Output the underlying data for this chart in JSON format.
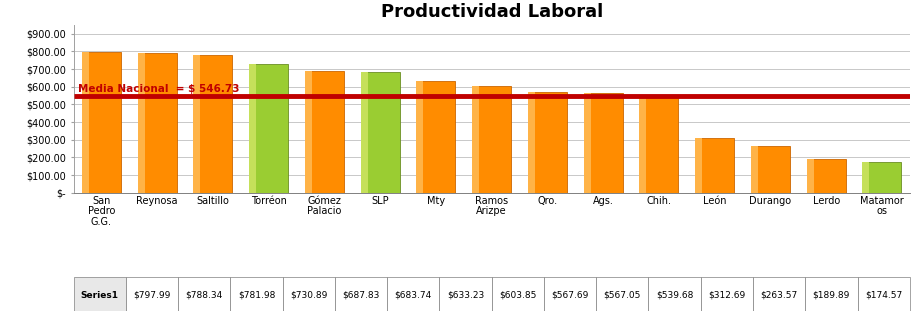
{
  "title": "Productividad Laboral",
  "categories": [
    "San\nPedro\nG.G.",
    "Reynosa",
    "Saltillo",
    "Torréon",
    "Gómez\nPalacio",
    "SLP",
    "Mty",
    "Ramos\nArizpe",
    "Qro.",
    "Ags.",
    "Chih.",
    "León",
    "Durango",
    "Lerdo",
    "Matamor\nos"
  ],
  "values": [
    797.99,
    788.34,
    781.98,
    730.89,
    687.83,
    683.74,
    633.23,
    603.85,
    567.69,
    567.05,
    539.68,
    312.69,
    263.57,
    189.89,
    174.57
  ],
  "value_labels": [
    "$797.99",
    "$788.34",
    "$781.98",
    "$730.89",
    "$687.83",
    "$683.74",
    "$633.23",
    "$603.85",
    "$567.69",
    "$567.05",
    "$539.68",
    "$312.69",
    "$263.57",
    "$189.89",
    "$174.57"
  ],
  "bar_colors": [
    "#FF8C00",
    "#FF8C00",
    "#FF8C00",
    "#9ACD32",
    "#FF8C00",
    "#9ACD32",
    "#FF8C00",
    "#FF8C00",
    "#FF8C00",
    "#FF8C00",
    "#FF8C00",
    "#FF8C00",
    "#FF8C00",
    "#FF8C00",
    "#9ACD32"
  ],
  "bar_highlight_colors": [
    "#FFB347",
    "#FFB347",
    "#FFB347",
    "#C5E05A",
    "#FFB347",
    "#C5E05A",
    "#FFB347",
    "#FFB347",
    "#FFB347",
    "#FFB347",
    "#FFB347",
    "#FFB347",
    "#FFB347",
    "#FFB347",
    "#C5E05A"
  ],
  "bar_edge_colors": [
    "#CC6600",
    "#CC6600",
    "#CC6600",
    "#6B8E23",
    "#CC6600",
    "#6B8E23",
    "#CC6600",
    "#CC6600",
    "#CC6600",
    "#CC6600",
    "#CC6600",
    "#CC6600",
    "#CC6600",
    "#CC6600",
    "#6B8E23"
  ],
  "median_value": 546.73,
  "median_label": "Media Nacional  = $ 546.73",
  "median_line_color": "#C00000",
  "ylim_max": 950,
  "ytick_values": [
    0,
    100,
    200,
    300,
    400,
    500,
    600,
    700,
    800,
    900
  ],
  "ytick_labels": [
    "$-",
    "$100.00",
    "$200.00",
    "$300.00",
    "$400.00",
    "$500.00",
    "$600.00",
    "$700.00",
    "$800.00",
    "$900.00"
  ],
  "series_label": "Series1",
  "bg_color": "#FFFFFF",
  "plot_bg_color": "#FFFFFF",
  "grid_color": "#C8C8C8",
  "title_fontsize": 13,
  "tick_fontsize": 7,
  "table_fontsize": 6.5,
  "bar_width": 0.7
}
